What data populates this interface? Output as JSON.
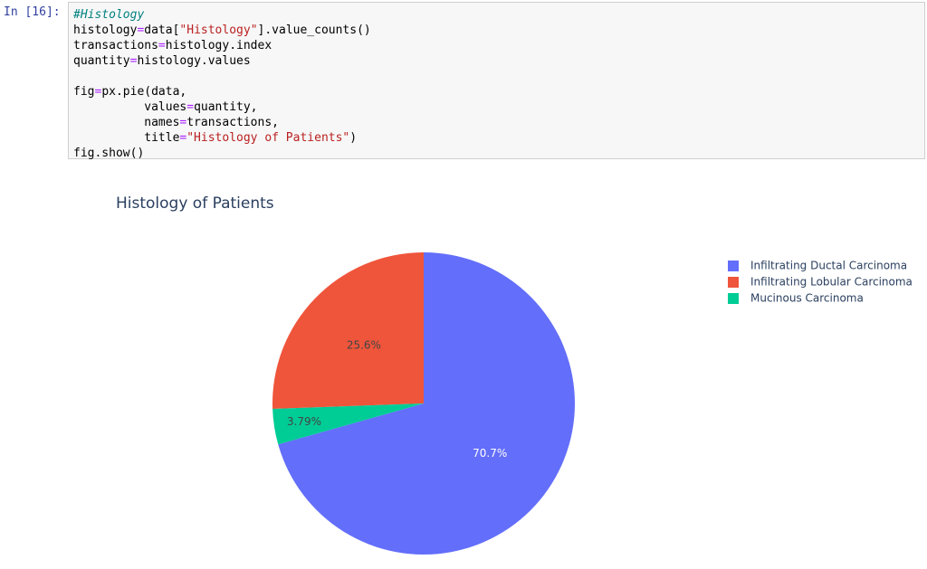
{
  "cell": {
    "prompt": "In [16]:",
    "blocks": [
      [
        [
          {
            "text": "#Histology",
            "style": "comment"
          }
        ],
        [
          {
            "text": "histology",
            "style": "plain"
          },
          {
            "text": "=",
            "style": "op"
          },
          {
            "text": "data[",
            "style": "plain"
          },
          {
            "text": "\"Histology\"",
            "style": "string"
          },
          {
            "text": "].value_counts()",
            "style": "plain"
          }
        ],
        [
          {
            "text": "transactions",
            "style": "plain"
          },
          {
            "text": "=",
            "style": "op"
          },
          {
            "text": "histology.index",
            "style": "plain"
          }
        ],
        [
          {
            "text": "quantity",
            "style": "plain"
          },
          {
            "text": "=",
            "style": "op"
          },
          {
            "text": "histology.values",
            "style": "plain"
          }
        ]
      ],
      [
        [
          {
            "text": "fig",
            "style": "plain"
          },
          {
            "text": "=",
            "style": "op"
          },
          {
            "text": "px.pie(data,",
            "style": "plain"
          }
        ],
        [
          {
            "text": "          values",
            "style": "plain"
          },
          {
            "text": "=",
            "style": "op"
          },
          {
            "text": "quantity,",
            "style": "plain"
          }
        ],
        [
          {
            "text": "          names",
            "style": "plain"
          },
          {
            "text": "=",
            "style": "op"
          },
          {
            "text": "transactions,",
            "style": "plain"
          }
        ],
        [
          {
            "text": "          title",
            "style": "plain"
          },
          {
            "text": "=",
            "style": "op"
          },
          {
            "text": "\"Histology of Patients\"",
            "style": "string"
          },
          {
            "text": ")",
            "style": "plain"
          }
        ],
        [
          {
            "text": "fig.show()",
            "style": "plain"
          }
        ]
      ]
    ]
  },
  "chart_data": {
    "type": "pie",
    "title": "Histology of Patients",
    "categories": [
      "Infiltrating Ductal Carcinoma",
      "Infiltrating Lobular Carcinoma",
      "Mucinous Carcinoma"
    ],
    "values": [
      70.7,
      25.6,
      3.79
    ],
    "value_labels": [
      "70.7%",
      "25.6%",
      "3.79%"
    ],
    "colors": [
      "#636efa",
      "#ef553b",
      "#00cc96"
    ],
    "label_colors": [
      "#ffffff",
      "#444444",
      "#444444"
    ],
    "direction": "counterclockwise",
    "legend": "top-right"
  }
}
